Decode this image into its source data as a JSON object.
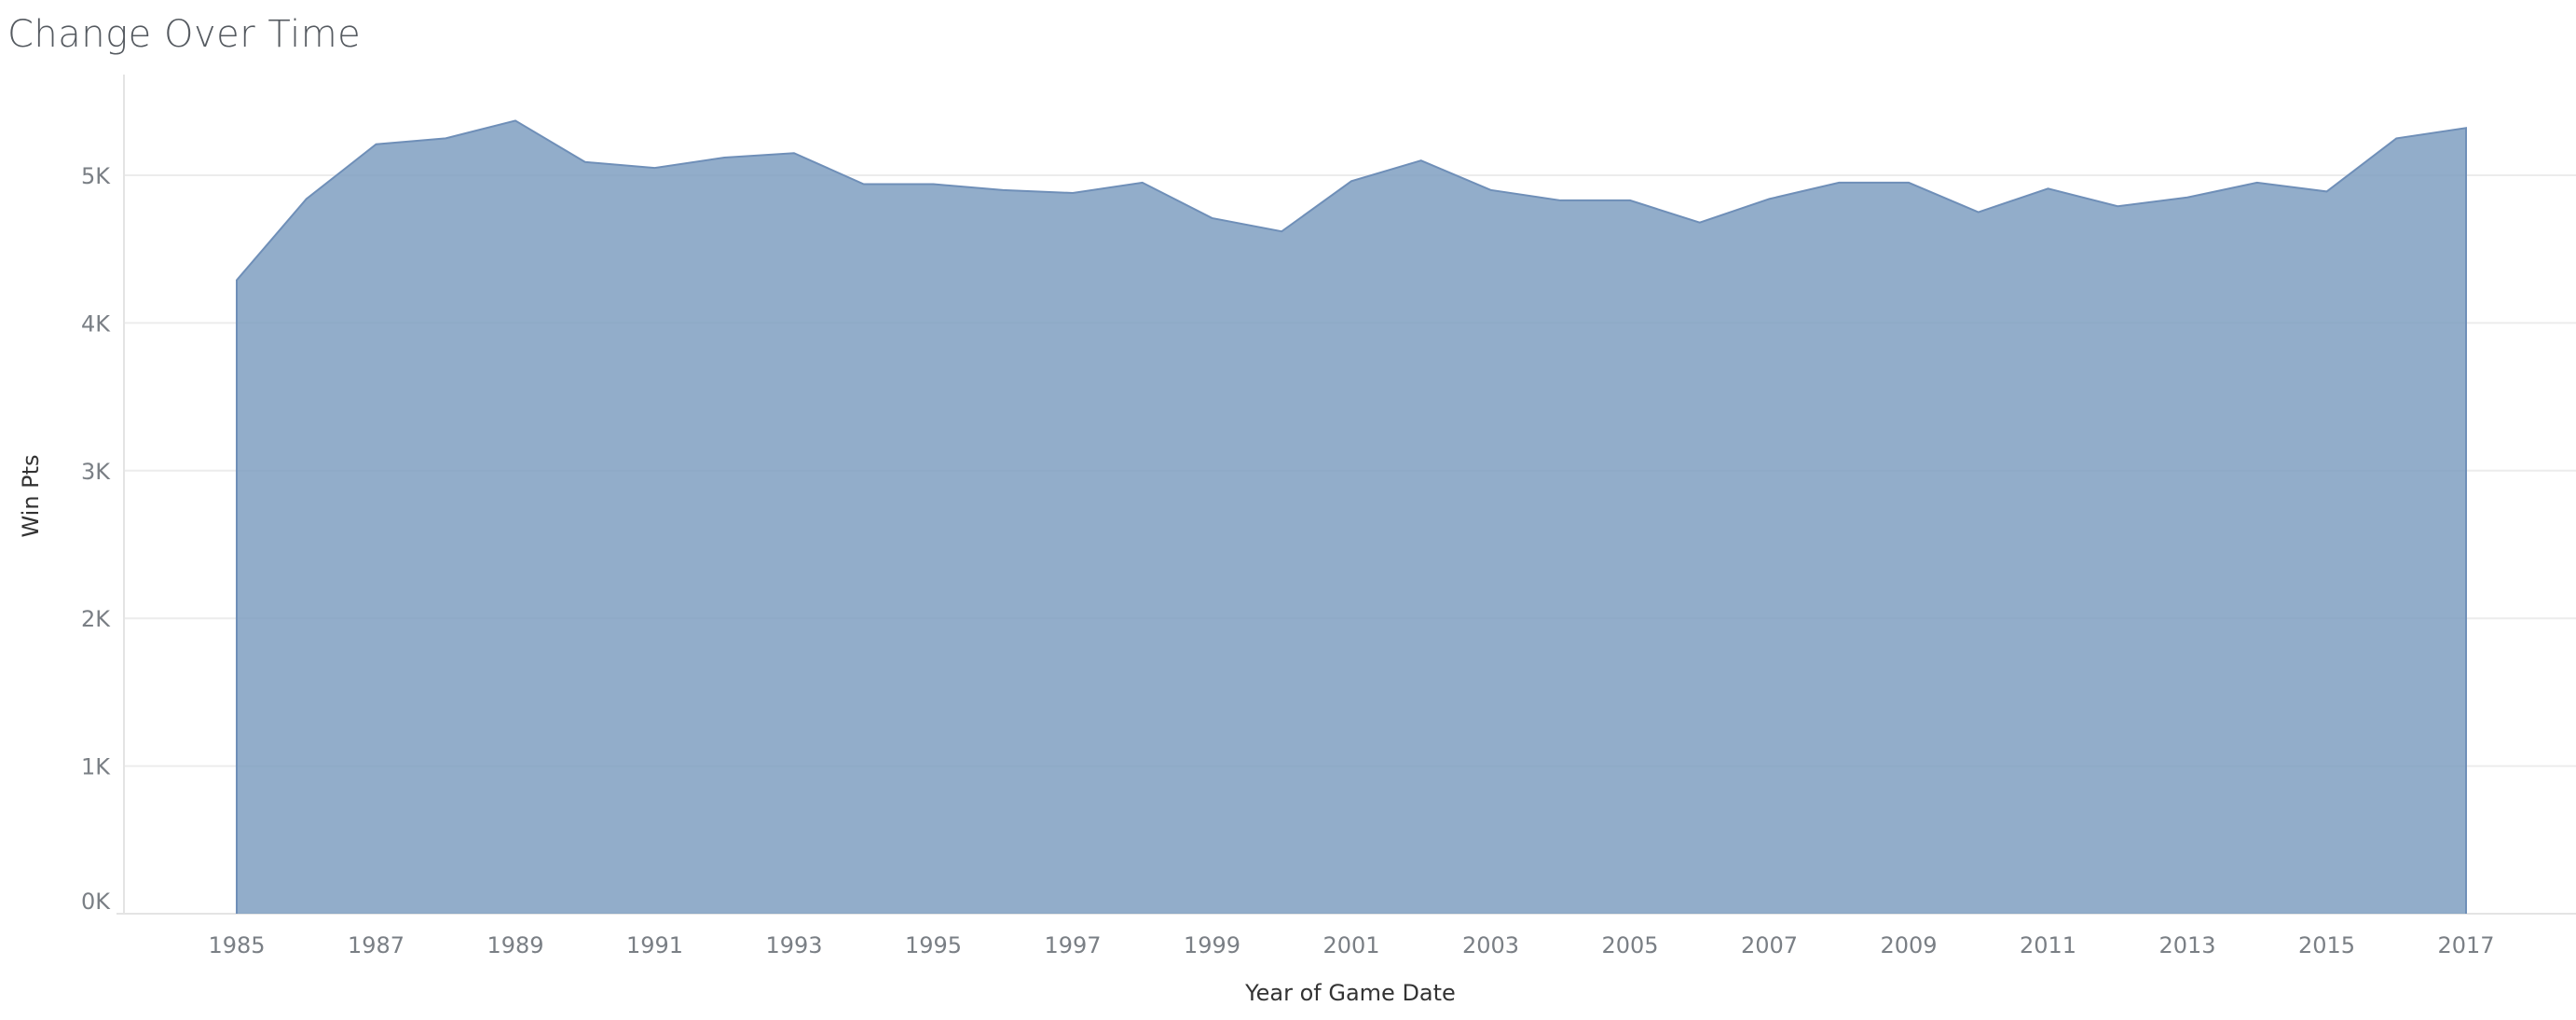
{
  "page": {
    "title": "Change Over Time"
  },
  "chart_data": {
    "type": "area",
    "title": "Change Over Time",
    "xlabel": "Year of Game Date",
    "ylabel": "Win Pts",
    "x": [
      1985,
      1986,
      1987,
      1988,
      1989,
      1990,
      1991,
      1992,
      1993,
      1994,
      1995,
      1996,
      1997,
      1998,
      1999,
      2000,
      2001,
      2002,
      2003,
      2004,
      2005,
      2006,
      2007,
      2008,
      2009,
      2010,
      2011,
      2012,
      2013,
      2014,
      2015,
      2016,
      2017
    ],
    "series": [
      {
        "name": "",
        "values": [
          4290,
          4840,
          5210,
          5250,
          5370,
          5090,
          5050,
          5120,
          5150,
          4940,
          4940,
          4900,
          4880,
          4950,
          4710,
          4620,
          4960,
          5100,
          4900,
          4830,
          4830,
          4680,
          4840,
          4950,
          4950,
          4750,
          4910,
          4790,
          4850,
          4950,
          4890,
          5250,
          5320
        ]
      }
    ],
    "x_ticks": [
      "1985",
      "1987",
      "1989",
      "1991",
      "1993",
      "1995",
      "1997",
      "1999",
      "2001",
      "2003",
      "2005",
      "2007",
      "2009",
      "2011",
      "2013",
      "2015",
      "2017"
    ],
    "y_ticks": [
      {
        "value": 0,
        "label": "0K"
      },
      {
        "value": 1000,
        "label": "1K"
      },
      {
        "value": 2000,
        "label": "2K"
      },
      {
        "value": 3000,
        "label": "3K"
      },
      {
        "value": 4000,
        "label": "4K"
      },
      {
        "value": 5000,
        "label": "5K"
      }
    ],
    "ylim": [
      0,
      5600
    ],
    "xlim": [
      1983.4,
      2020.3
    ],
    "grid": true,
    "colors": {
      "area_fill": "#7f9fc1",
      "area_line": "#6f8fb8",
      "grid": "#ececec",
      "axis": "#e4e4e4"
    }
  }
}
